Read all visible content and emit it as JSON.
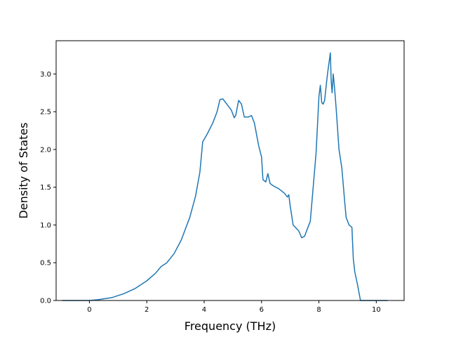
{
  "chart_data": {
    "type": "line",
    "title": "",
    "xlabel": "Frequency (THz)",
    "ylabel": "Density of States",
    "xlim": [
      -1.16,
      10.97
    ],
    "ylim": [
      0,
      3.44
    ],
    "grid": false,
    "legend": "none",
    "xticks": [
      {
        "value": 0,
        "label": "0"
      },
      {
        "value": 2,
        "label": "2"
      },
      {
        "value": 4,
        "label": "4"
      },
      {
        "value": 6,
        "label": "6"
      },
      {
        "value": 8,
        "label": "8"
      },
      {
        "value": 10,
        "label": "10"
      }
    ],
    "yticks": [
      {
        "value": 0,
        "label": "0.0"
      },
      {
        "value": 0.5,
        "label": "0.5"
      },
      {
        "value": 1.0,
        "label": "1.0"
      },
      {
        "value": 1.5,
        "label": "1.5"
      },
      {
        "value": 2.0,
        "label": "2.0"
      },
      {
        "value": 2.5,
        "label": "2.5"
      },
      {
        "value": 3.0,
        "label": "3.0"
      }
    ],
    "series": [
      {
        "color": "#1f77b4",
        "x": [
          -0.95,
          0.0,
          0.3,
          0.8,
          1.2,
          1.6,
          2.0,
          2.3,
          2.5,
          2.7,
          2.95,
          3.2,
          3.5,
          3.7,
          3.85,
          3.95,
          4.1,
          4.3,
          4.45,
          4.55,
          4.65,
          4.75,
          4.85,
          4.95,
          5.05,
          5.1,
          5.2,
          5.3,
          5.4,
          5.55,
          5.65,
          5.75,
          5.9,
          6.0,
          6.05,
          6.15,
          6.22,
          6.3,
          6.4,
          6.6,
          6.8,
          6.9,
          6.95,
          7.0,
          7.1,
          7.3,
          7.4,
          7.5,
          7.6,
          7.7,
          7.8,
          7.9,
          8.0,
          8.05,
          8.1,
          8.15,
          8.2,
          8.3,
          8.4,
          8.43,
          8.46,
          8.5,
          8.55,
          8.6,
          8.7,
          8.8,
          8.9,
          8.95,
          9.05,
          9.15,
          9.2,
          9.25,
          9.35,
          9.45,
          9.5,
          10.4
        ],
        "y": [
          0.0,
          0.0,
          0.01,
          0.04,
          0.09,
          0.16,
          0.26,
          0.36,
          0.45,
          0.5,
          0.62,
          0.8,
          1.1,
          1.38,
          1.7,
          2.1,
          2.2,
          2.35,
          2.5,
          2.66,
          2.67,
          2.62,
          2.57,
          2.52,
          2.42,
          2.45,
          2.65,
          2.6,
          2.43,
          2.43,
          2.45,
          2.35,
          2.05,
          1.9,
          1.6,
          1.57,
          1.68,
          1.55,
          1.52,
          1.48,
          1.42,
          1.37,
          1.4,
          1.25,
          1.0,
          0.92,
          0.83,
          0.85,
          0.95,
          1.05,
          1.5,
          1.95,
          2.7,
          2.85,
          2.62,
          2.6,
          2.65,
          3.0,
          3.28,
          2.9,
          2.75,
          3.0,
          2.8,
          2.55,
          2.0,
          1.75,
          1.3,
          1.1,
          1.0,
          0.97,
          0.55,
          0.38,
          0.2,
          0.0,
          0.0,
          0.0
        ]
      }
    ]
  }
}
